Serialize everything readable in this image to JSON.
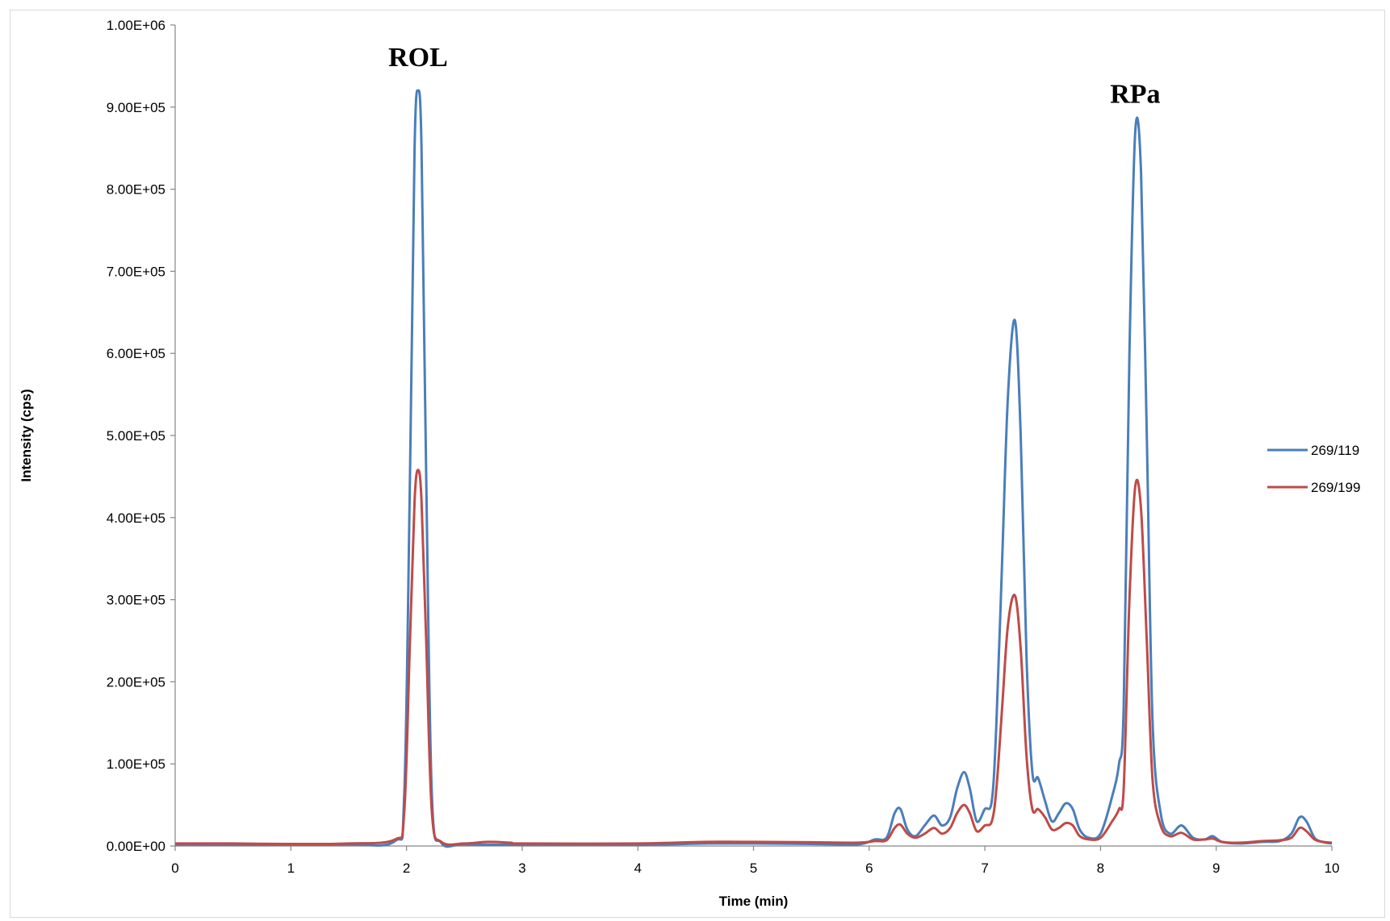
{
  "chart_data": {
    "type": "line",
    "xlabel": "Time (min)",
    "ylabel": "Intensity (cps)",
    "xlim": [
      0,
      10
    ],
    "ylim": [
      0,
      1000000
    ],
    "x_ticks": [
      "0",
      "1",
      "2",
      "3",
      "4",
      "5",
      "6",
      "7",
      "8",
      "9",
      "10"
    ],
    "y_ticks": [
      "0.00E+00",
      "1.00E+05",
      "2.00E+05",
      "3.00E+05",
      "4.00E+05",
      "5.00E+05",
      "6.00E+05",
      "7.00E+05",
      "8.00E+05",
      "9.00E+05",
      "1.00E+06"
    ],
    "grid": false,
    "legend_position": "right",
    "annotations": [
      {
        "text": "ROL",
        "x": 2.1,
        "y": 950000
      },
      {
        "text": "RPa",
        "x": 8.3,
        "y": 905000
      }
    ],
    "series": [
      {
        "name": "269/119",
        "color": "#4a7ebb",
        "x": [
          0,
          0.5,
          1.0,
          1.5,
          1.9,
          1.98,
          2.03,
          2.07,
          2.1,
          2.13,
          2.17,
          2.22,
          2.3,
          2.5,
          3.0,
          4.0,
          4.6,
          5.0,
          5.5,
          5.9,
          6.05,
          6.15,
          6.22,
          6.27,
          6.33,
          6.4,
          6.48,
          6.56,
          6.63,
          6.7,
          6.76,
          6.82,
          6.87,
          6.93,
          7.0,
          7.06,
          7.1,
          7.15,
          7.2,
          7.26,
          7.31,
          7.36,
          7.41,
          7.46,
          7.52,
          7.58,
          7.64,
          7.7,
          7.76,
          7.82,
          7.9,
          8.0,
          8.1,
          8.16,
          8.2,
          8.25,
          8.3,
          8.35,
          8.4,
          8.45,
          8.52,
          8.6,
          8.7,
          8.8,
          8.9,
          8.97,
          9.05,
          9.2,
          9.4,
          9.55,
          9.65,
          9.72,
          9.78,
          9.85,
          9.92,
          10.0
        ],
        "values": [
          2000,
          1500,
          1500,
          2000,
          6000,
          60000,
          450000,
          850000,
          920000,
          850000,
          450000,
          60000,
          4000,
          2000,
          1500,
          1500,
          3000,
          3000,
          2500,
          2000,
          8000,
          10000,
          40000,
          45000,
          20000,
          12000,
          25000,
          37000,
          25000,
          35000,
          70000,
          90000,
          70000,
          30000,
          45000,
          55000,
          150000,
          350000,
          550000,
          640000,
          500000,
          230000,
          90000,
          83000,
          55000,
          30000,
          40000,
          52000,
          45000,
          20000,
          10000,
          15000,
          60000,
          100000,
          170000,
          600000,
          870000,
          820000,
          500000,
          150000,
          40000,
          15000,
          25000,
          10000,
          8000,
          12000,
          5000,
          3000,
          5000,
          6000,
          15000,
          35000,
          30000,
          10000,
          5000,
          3000
        ]
      },
      {
        "name": "269/199",
        "color": "#be4b48",
        "x": [
          0,
          0.5,
          1.0,
          1.5,
          1.9,
          1.98,
          2.03,
          2.07,
          2.1,
          2.13,
          2.17,
          2.22,
          2.3,
          2.5,
          2.7,
          2.9,
          3.0,
          4.0,
          4.6,
          5.0,
          5.5,
          5.9,
          6.05,
          6.15,
          6.22,
          6.27,
          6.33,
          6.4,
          6.48,
          6.56,
          6.63,
          6.7,
          6.76,
          6.82,
          6.87,
          6.93,
          7.0,
          7.06,
          7.1,
          7.15,
          7.2,
          7.26,
          7.31,
          7.36,
          7.41,
          7.46,
          7.52,
          7.58,
          7.64,
          7.7,
          7.76,
          7.82,
          7.9,
          8.0,
          8.1,
          8.16,
          8.2,
          8.25,
          8.3,
          8.35,
          8.4,
          8.45,
          8.52,
          8.6,
          8.7,
          8.8,
          8.9,
          8.97,
          9.05,
          9.2,
          9.4,
          9.55,
          9.65,
          9.72,
          9.78,
          9.85,
          9.92,
          10.0
        ],
        "values": [
          3000,
          3000,
          2500,
          3000,
          8000,
          40000,
          250000,
          420000,
          458000,
          420000,
          250000,
          40000,
          5000,
          3000,
          5000,
          4000,
          3000,
          3000,
          5000,
          5000,
          4500,
          4000,
          6000,
          7000,
          22000,
          26000,
          15000,
          10000,
          15000,
          22000,
          15000,
          22000,
          40000,
          50000,
          40000,
          18000,
          25000,
          30000,
          70000,
          170000,
          270000,
          305000,
          240000,
          110000,
          45000,
          45000,
          35000,
          20000,
          22000,
          28000,
          25000,
          12000,
          8000,
          10000,
          30000,
          45000,
          70000,
          300000,
          438000,
          410000,
          250000,
          80000,
          25000,
          12000,
          16000,
          8000,
          8000,
          9000,
          5000,
          4000,
          6000,
          7000,
          10000,
          22000,
          18000,
          8000,
          5000,
          4000
        ]
      }
    ]
  }
}
